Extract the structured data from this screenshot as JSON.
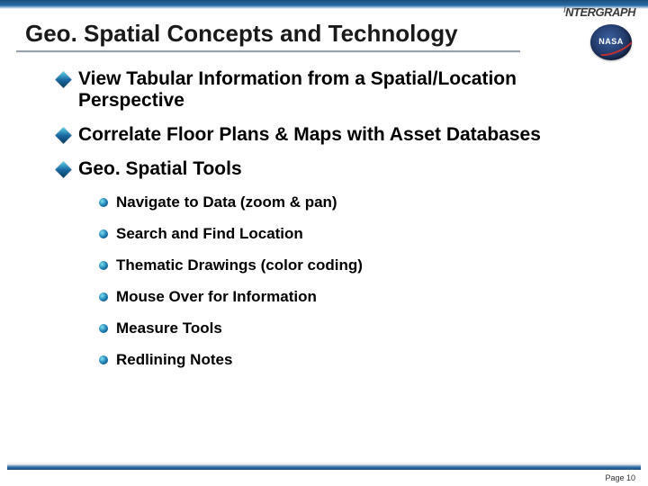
{
  "logo": {
    "brand_prefix": "I",
    "brand": "NTERGRAPH",
    "secondary": "NASA"
  },
  "title": "Geo. Spatial Concepts and Technology",
  "bullets": [
    {
      "text": "View Tabular Information from a Spatial/Location Perspective"
    },
    {
      "text": "Correlate Floor Plans & Maps with Asset Databases"
    },
    {
      "text": "Geo. Spatial Tools"
    }
  ],
  "sub_bullets": [
    {
      "text": "Navigate to Data (zoom & pan)"
    },
    {
      "text": "Search and Find Location"
    },
    {
      "text": "Thematic Drawings (color coding)"
    },
    {
      "text": "Mouse Over for Information"
    },
    {
      "text": "Measure Tools"
    },
    {
      "text": "Redlining Notes"
    }
  ],
  "footer": {
    "page_label": "Page 10"
  },
  "colors": {
    "header_gradient_top": "#1a4d7a",
    "header_gradient_bottom": "#2a6da8",
    "bullet_gradient_light": "#5dd4e8",
    "bullet_gradient_dark": "#0a3a5a",
    "underline": "#9aa3ab",
    "text": "#000000",
    "background": "#ffffff"
  },
  "typography": {
    "title_fontsize": 26,
    "bullet_fontsize": 21,
    "sub_bullet_fontsize": 17,
    "font_family": "Arial"
  }
}
